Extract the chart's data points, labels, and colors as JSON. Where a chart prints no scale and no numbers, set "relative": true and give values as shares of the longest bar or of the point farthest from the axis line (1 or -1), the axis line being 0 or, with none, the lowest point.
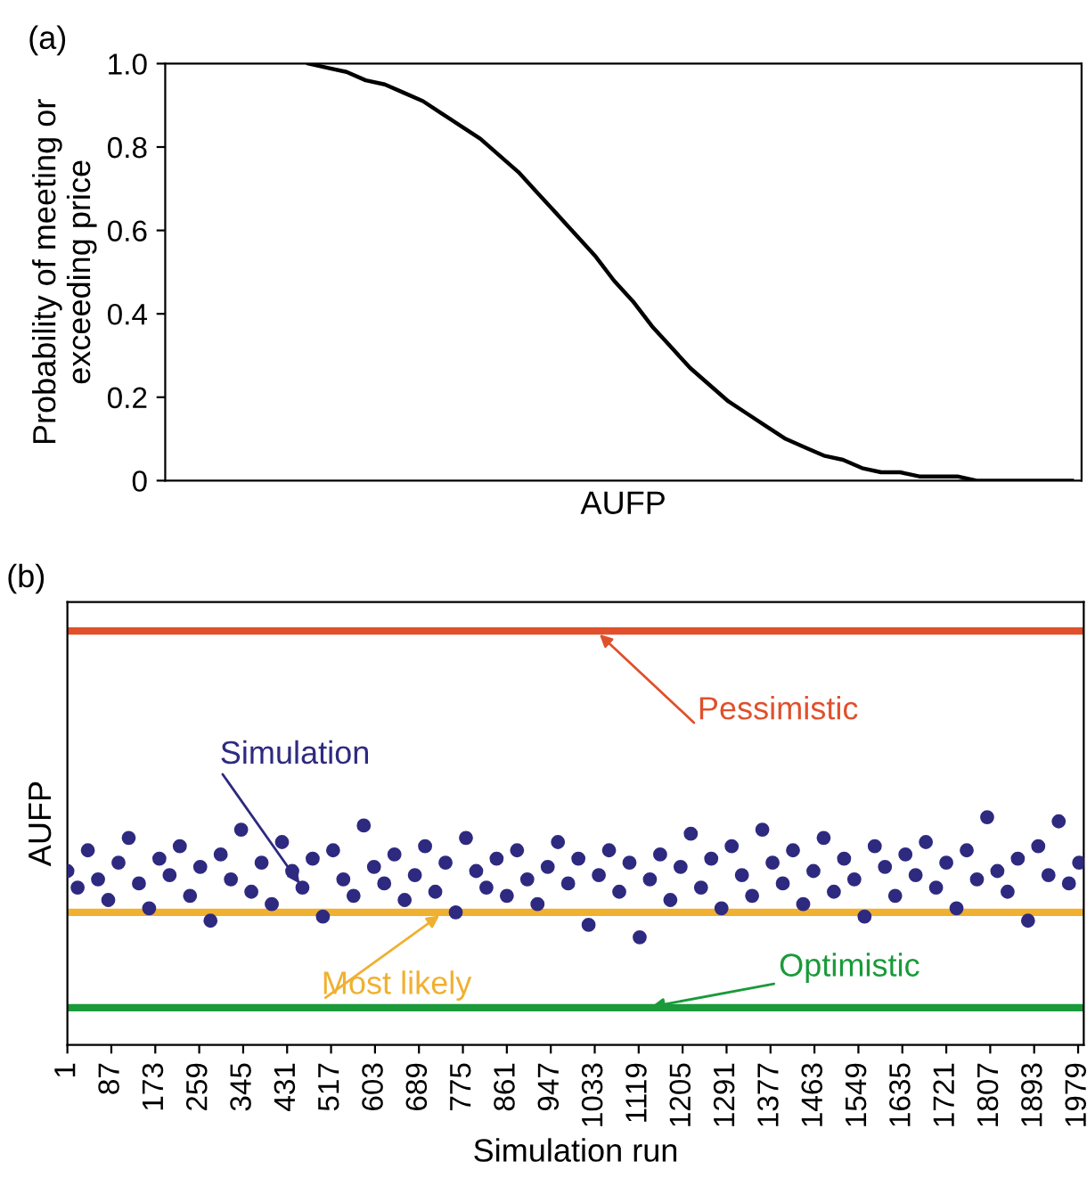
{
  "chart_data": [
    {
      "type": "line",
      "title": "(a)",
      "xlabel": "AUFP",
      "ylabel": "Probability of meeting or\nexceeding price",
      "tick_labels": "y",
      "grid": false,
      "legend": false,
      "categories": [
        null,
        null,
        null,
        null,
        null,
        null,
        null,
        null,
        null,
        null,
        null,
        null,
        null,
        null,
        null,
        null,
        null,
        null,
        null,
        null,
        null,
        null,
        null,
        null,
        null,
        null,
        null,
        null,
        null,
        null,
        null,
        null,
        null,
        null,
        null,
        null,
        null,
        null,
        null,
        null,
        null,
        null,
        null,
        null,
        null,
        null,
        null,
        null
      ],
      "series": [
        {
          "color": "#000000",
          "values": [
            null,
            null,
            null,
            null,
            null,
            null,
            null,
            1.0,
            0.99,
            0.98,
            0.96,
            0.95,
            0.93,
            0.91,
            0.88,
            0.85,
            0.82,
            0.78,
            0.74,
            0.69,
            0.64,
            0.59,
            0.54,
            0.48,
            0.43,
            0.37,
            0.32,
            0.27,
            0.23,
            0.19,
            0.16,
            0.13,
            0.1,
            0.08,
            0.06,
            0.05,
            0.03,
            0.02,
            0.02,
            0.01,
            0.01,
            0.01,
            0.0,
            0.0,
            0.0,
            0.0,
            0.0,
            0.0
          ]
        }
      ],
      "ylim": [
        0,
        1
      ],
      "yticks": [
        0,
        0.2,
        0.4,
        0.6,
        0.8,
        {
          "value": 1,
          "label": "1.0"
        }
      ]
    },
    {
      "type": "scatter",
      "title": "(b)",
      "xlabel": "Simulation run",
      "ylabel": "AUFP",
      "relative": true,
      "tick_labels": "x",
      "grid": false,
      "legend": false,
      "xlim": [
        1,
        1990
      ],
      "xticks": [
        1,
        87,
        173,
        259,
        345,
        431,
        517,
        603,
        689,
        775,
        861,
        947,
        1033,
        1119,
        1205,
        1291,
        1377,
        1463,
        1549,
        1635,
        1721,
        1807,
        1893,
        1979
      ],
      "series": [
        {
          "name": "Pessimistic",
          "type": "line",
          "color": "#e0502a",
          "x": [
            1,
            1990
          ],
          "values": [
            1,
            1
          ]
        },
        {
          "name": "Simulation",
          "type": "scatter",
          "marker": "circle",
          "color": "#2e2a80",
          "x": [
            1,
            21,
            41,
            61,
            81,
            101,
            121,
            141,
            161,
            181,
            201,
            221,
            241,
            261,
            281,
            301,
            321,
            341,
            361,
            381,
            401,
            421,
            441,
            461,
            481,
            501,
            521,
            541,
            561,
            581,
            601,
            621,
            641,
            661,
            681,
            701,
            721,
            741,
            761,
            781,
            801,
            821,
            841,
            861,
            881,
            901,
            921,
            941,
            961,
            981,
            1001,
            1021,
            1041,
            1061,
            1081,
            1101,
            1121,
            1141,
            1161,
            1181,
            1201,
            1221,
            1241,
            1261,
            1281,
            1301,
            1321,
            1341,
            1361,
            1381,
            1401,
            1421,
            1441,
            1461,
            1481,
            1501,
            1521,
            1541,
            1561,
            1581,
            1601,
            1621,
            1641,
            1661,
            1681,
            1701,
            1721,
            1741,
            1761,
            1781,
            1801,
            1821,
            1841,
            1861,
            1881,
            1901,
            1921,
            1941,
            1961,
            1981
          ],
          "values": [
            0.42,
            0.38,
            0.47,
            0.4,
            0.35,
            0.44,
            0.5,
            0.39,
            0.33,
            0.45,
            0.41,
            0.48,
            0.36,
            0.43,
            0.3,
            0.46,
            0.4,
            0.52,
            0.37,
            0.44,
            0.34,
            0.49,
            0.42,
            0.38,
            0.45,
            0.31,
            0.47,
            0.4,
            0.36,
            0.53,
            0.43,
            0.39,
            0.46,
            0.35,
            0.41,
            0.48,
            0.37,
            0.44,
            0.32,
            0.5,
            0.42,
            0.38,
            0.45,
            0.36,
            0.47,
            0.4,
            0.34,
            0.43,
            0.49,
            0.39,
            0.45,
            0.29,
            0.41,
            0.47,
            0.37,
            0.44,
            0.26,
            0.4,
            0.46,
            0.35,
            0.43,
            0.51,
            0.38,
            0.45,
            0.33,
            0.48,
            0.41,
            0.36,
            0.52,
            0.44,
            0.39,
            0.47,
            0.34,
            0.42,
            0.5,
            0.37,
            0.45,
            0.4,
            0.31,
            0.48,
            0.43,
            0.36,
            0.46,
            0.41,
            0.49,
            0.38,
            0.44,
            0.33,
            0.47,
            0.4,
            0.55,
            0.42,
            0.37,
            0.45,
            0.3,
            0.48,
            0.41,
            0.54,
            0.39,
            0.44
          ]
        },
        {
          "name": "Most likely",
          "type": "line",
          "color": "#f0b030",
          "x": [
            1,
            1990
          ],
          "values": [
            0.32,
            0.32
          ]
        },
        {
          "name": "Optimistic",
          "type": "line",
          "color": "#1a9a3a",
          "x": [
            1,
            1990
          ],
          "values": [
            0.09,
            0.09
          ]
        }
      ]
    }
  ]
}
